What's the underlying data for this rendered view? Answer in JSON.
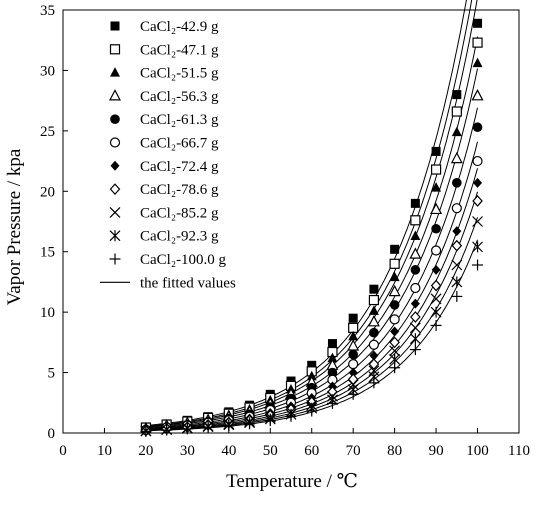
{
  "chart_data": {
    "type": "scatter",
    "title": "",
    "xlabel": "Temperature / ℃",
    "ylabel": "Vapor Pressure / kpa",
    "xlim": [
      0,
      110
    ],
    "ylim": [
      0,
      35
    ],
    "xticks": [
      "0",
      "10",
      "20",
      "30",
      "40",
      "50",
      "60",
      "70",
      "80",
      "90",
      "100",
      "110"
    ],
    "yticks": [
      "0",
      "5",
      "10",
      "15",
      "20",
      "25",
      "30",
      "35"
    ],
    "grid": false,
    "legend_position": "top-left",
    "x": [
      20,
      25,
      30,
      35,
      40,
      45,
      50,
      55,
      60,
      65,
      70,
      75,
      80,
      85,
      90,
      95,
      100
    ],
    "series": [
      {
        "name": "CaCl₂-42.9  g",
        "marker": "filled-square",
        "values": [
          0.5,
          0.75,
          1.05,
          1.35,
          1.75,
          2.3,
          3.2,
          4.3,
          5.6,
          7.4,
          9.5,
          11.9,
          15.2,
          19.0,
          23.3,
          28.0,
          33.9
        ]
      },
      {
        "name": "CaCl₂-47.1  g",
        "marker": "open-square",
        "values": [
          0.45,
          0.7,
          0.95,
          1.25,
          1.6,
          2.1,
          2.9,
          3.9,
          5.1,
          6.7,
          8.7,
          11.0,
          14.0,
          17.6,
          21.8,
          26.6,
          32.3
        ]
      },
      {
        "name": "CaCl₂-51.5  g",
        "marker": "filled-triangle",
        "values": [
          0.4,
          0.65,
          0.9,
          1.15,
          1.5,
          1.95,
          2.7,
          3.6,
          4.7,
          6.2,
          8.0,
          10.1,
          12.9,
          16.3,
          20.3,
          24.9,
          30.6
        ]
      },
      {
        "name": "CaCl₂-56.3  g",
        "marker": "open-triangle",
        "values": [
          0.35,
          0.6,
          0.8,
          1.05,
          1.35,
          1.75,
          2.4,
          3.2,
          4.2,
          5.6,
          7.2,
          9.2,
          11.7,
          14.8,
          18.5,
          22.7,
          27.9
        ]
      },
      {
        "name": "CaCl₂-61.3  g",
        "marker": "filled-circle",
        "values": [
          0.3,
          0.5,
          0.7,
          0.95,
          1.2,
          1.55,
          2.15,
          2.85,
          3.75,
          5.0,
          6.5,
          8.3,
          10.6,
          13.5,
          16.9,
          20.7,
          25.3
        ]
      },
      {
        "name": "CaCl₂-66.7  g",
        "marker": "open-circle",
        "values": [
          0.25,
          0.45,
          0.62,
          0.85,
          1.05,
          1.35,
          1.9,
          2.5,
          3.3,
          4.4,
          5.7,
          7.3,
          9.4,
          12.0,
          15.1,
          18.6,
          22.5
        ]
      },
      {
        "name": "CaCl₂-72.4  g",
        "marker": "filled-diamond",
        "values": [
          0.22,
          0.4,
          0.55,
          0.75,
          0.95,
          1.2,
          1.65,
          2.2,
          2.9,
          3.85,
          5.0,
          6.4,
          8.4,
          10.7,
          13.5,
          16.7,
          20.7
        ]
      },
      {
        "name": "CaCl₂-78.6  g",
        "marker": "open-diamond",
        "values": [
          0.2,
          0.35,
          0.48,
          0.65,
          0.85,
          1.05,
          1.45,
          1.95,
          2.55,
          3.4,
          4.45,
          5.7,
          7.5,
          9.6,
          12.2,
          15.5,
          19.2
        ]
      },
      {
        "name": "CaCl₂-85.2  g",
        "marker": "x",
        "values": [
          0.18,
          0.3,
          0.42,
          0.58,
          0.75,
          0.95,
          1.3,
          1.75,
          2.3,
          3.05,
          4.0,
          5.15,
          6.8,
          8.7,
          11.1,
          13.9,
          17.5
        ]
      },
      {
        "name": "CaCl₂-92.3  g",
        "marker": "asterisk",
        "values": [
          0.16,
          0.27,
          0.38,
          0.52,
          0.68,
          0.85,
          1.15,
          1.55,
          2.05,
          2.75,
          3.6,
          4.65,
          6.1,
          7.8,
          10.0,
          12.5,
          15.4
        ]
      },
      {
        "name": "CaCl₂-100.0  g",
        "marker": "plus",
        "values": [
          0.14,
          0.24,
          0.34,
          0.46,
          0.6,
          0.76,
          1.02,
          1.38,
          1.82,
          2.45,
          3.2,
          4.15,
          5.4,
          6.9,
          8.9,
          11.3,
          13.9
        ]
      }
    ],
    "fitted_label": "the fitted values"
  }
}
